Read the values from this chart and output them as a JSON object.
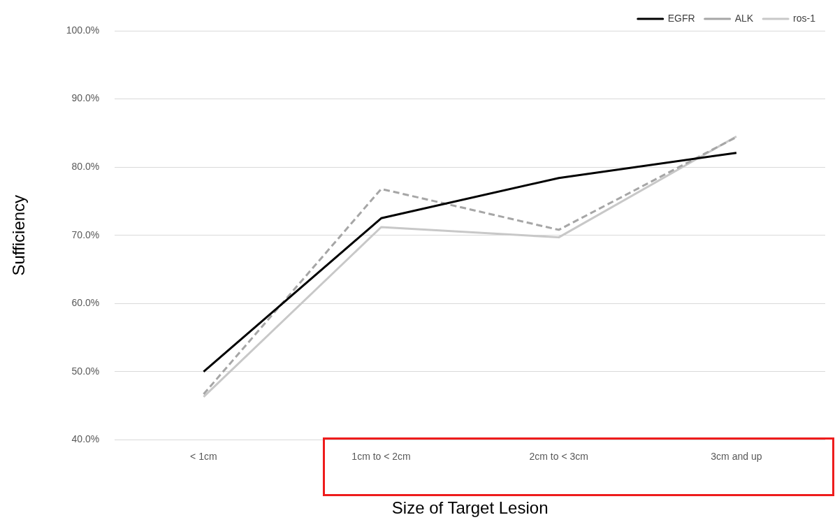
{
  "chart_data": {
    "type": "line",
    "xlabel": "Size of Target Lesion",
    "ylabel": "Sufficiency",
    "categories": [
      "< 1cm",
      "1cm to < 2cm",
      "2cm to < 3cm",
      "3cm and up"
    ],
    "series": [
      {
        "name": "EGFR",
        "color": "#000000",
        "line_style": "solid",
        "values": [
          50.0,
          72.5,
          78.4,
          82.1
        ]
      },
      {
        "name": "ALK",
        "color": "#a6a6a6",
        "line_style": "dashed",
        "values": [
          46.7,
          76.8,
          70.8,
          84.4
        ]
      },
      {
        "name": "ros-1",
        "color": "#c8c8c8",
        "line_style": "solid",
        "values": [
          46.3,
          71.2,
          69.7,
          84.5
        ]
      }
    ],
    "ylim": [
      40,
      100
    ],
    "yticks": [
      {
        "value": 40,
        "label": "40.0%"
      },
      {
        "value": 50,
        "label": "50.0%"
      },
      {
        "value": 60,
        "label": "60.0%"
      },
      {
        "value": 70,
        "label": "70.0%"
      },
      {
        "value": 80,
        "label": "80.0%"
      },
      {
        "value": 90,
        "label": "90.0%"
      },
      {
        "value": 100,
        "label": "100.0%"
      }
    ],
    "grid": "y",
    "legend": "top right",
    "marker": "none"
  }
}
